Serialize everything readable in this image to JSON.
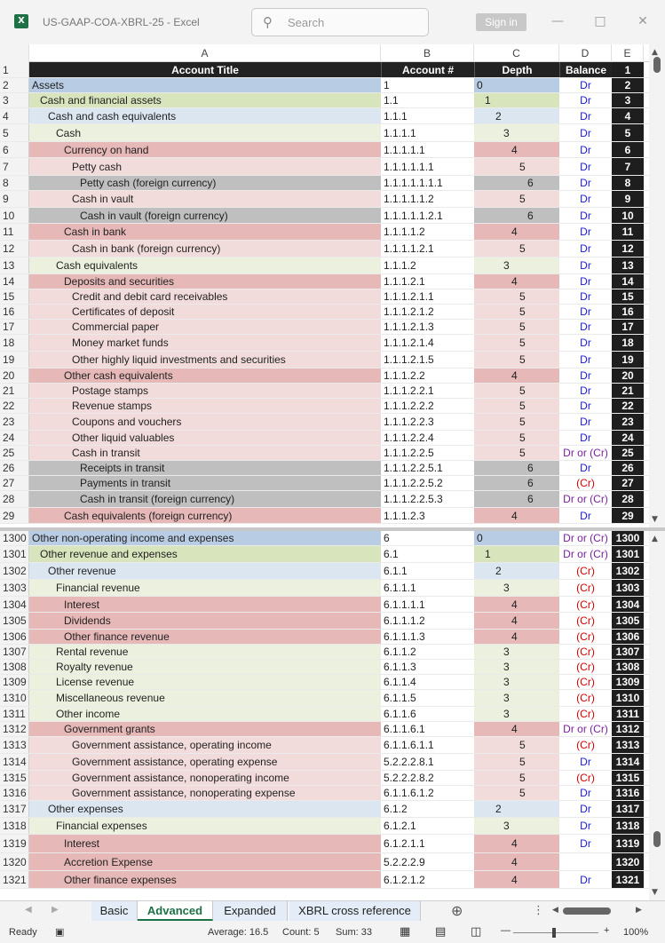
{
  "window": {
    "title": "US-GAAP-COA-XBRL-25 - Excel",
    "search_placeholder": "Search",
    "signin": "Sign in"
  },
  "colors": {
    "assets": "#b8cce4",
    "l1": "#d8e4bc",
    "l2": "#dce6f1",
    "l3": "#ebf1de",
    "l4": "#e6b8b7",
    "l5": "#f2dcdb",
    "l6": "#bfbfbf",
    "dr": "#1a1ad6",
    "cr": "#d40000",
    "mixed": "#7a1fa0"
  },
  "columns": [
    "A",
    "B",
    "C",
    "D",
    "E"
  ],
  "header": {
    "row": "1",
    "title": "Account Title",
    "account": "Account #",
    "depth": "Depth",
    "balance": "Balance",
    "e": "1"
  },
  "rows_top": [
    {
      "n": "2",
      "title": "Assets",
      "acct": "1",
      "depth": "0",
      "bal": "Dr"
    },
    {
      "n": "3",
      "title": "Cash and financial assets",
      "acct": "1.1",
      "depth": "1",
      "bal": "Dr"
    },
    {
      "n": "4",
      "title": "Cash and cash equivalents",
      "acct": "1.1.1",
      "depth": "2",
      "bal": "Dr"
    },
    {
      "n": "5",
      "title": "Cash",
      "acct": "1.1.1.1",
      "depth": "3",
      "bal": "Dr"
    },
    {
      "n": "6",
      "title": "Currency on hand",
      "acct": "1.1.1.1.1",
      "depth": "4",
      "bal": "Dr"
    },
    {
      "n": "7",
      "title": "Petty cash",
      "acct": "1.1.1.1.1.1",
      "depth": "5",
      "bal": "Dr"
    },
    {
      "n": "8",
      "title": "Petty cash (foreign currency)",
      "acct": "1.1.1.1.1.1.1",
      "depth": "6",
      "bal": "Dr"
    },
    {
      "n": "9",
      "title": "Cash in vault",
      "acct": "1.1.1.1.1.2",
      "depth": "5",
      "bal": "Dr"
    },
    {
      "n": "10",
      "title": "Cash in vault (foreign currency)",
      "acct": "1.1.1.1.1.2.1",
      "depth": "6",
      "bal": "Dr"
    },
    {
      "n": "11",
      "title": "Cash in bank",
      "acct": "1.1.1.1.2",
      "depth": "4",
      "bal": "Dr"
    },
    {
      "n": "12",
      "title": "Cash in bank (foreign currency)",
      "acct": "1.1.1.1.2.1",
      "depth": "5",
      "bal": "Dr"
    },
    {
      "n": "13",
      "title": "Cash equivalents",
      "acct": "1.1.1.2",
      "depth": "3",
      "bal": "Dr"
    },
    {
      "n": "14",
      "title": "Deposits and securities",
      "acct": "1.1.1.2.1",
      "depth": "4",
      "bal": "Dr"
    },
    {
      "n": "15",
      "title": "Credit and debit card receivables",
      "acct": "1.1.1.2.1.1",
      "depth": "5",
      "bal": "Dr"
    },
    {
      "n": "16",
      "title": "Certificates of deposit",
      "acct": "1.1.1.2.1.2",
      "depth": "5",
      "bal": "Dr"
    },
    {
      "n": "17",
      "title": "Commercial paper",
      "acct": "1.1.1.2.1.3",
      "depth": "5",
      "bal": "Dr"
    },
    {
      "n": "18",
      "title": "Money market funds",
      "acct": "1.1.1.2.1.4",
      "depth": "5",
      "bal": "Dr"
    },
    {
      "n": "19",
      "title": "Other highly liquid investments and securities",
      "acct": "1.1.1.2.1.5",
      "depth": "5",
      "bal": "Dr"
    },
    {
      "n": "20",
      "title": "Other cash equivalents",
      "acct": "1.1.1.2.2",
      "depth": "4",
      "bal": "Dr"
    },
    {
      "n": "21",
      "title": "Postage stamps",
      "acct": "1.1.1.2.2.1",
      "depth": "5",
      "bal": "Dr"
    },
    {
      "n": "22",
      "title": "Revenue stamps",
      "acct": "1.1.1.2.2.2",
      "depth": "5",
      "bal": "Dr"
    },
    {
      "n": "23",
      "title": "Coupons and vouchers",
      "acct": "1.1.1.2.2.3",
      "depth": "5",
      "bal": "Dr"
    },
    {
      "n": "24",
      "title": "Other liquid valuables",
      "acct": "1.1.1.2.2.4",
      "depth": "5",
      "bal": "Dr"
    },
    {
      "n": "25",
      "title": "Cash in transit",
      "acct": "1.1.1.2.2.5",
      "depth": "5",
      "bal": "Dr or (Cr)"
    },
    {
      "n": "26",
      "title": "Receipts in transit",
      "acct": "1.1.1.2.2.5.1",
      "depth": "6",
      "bal": "Dr"
    },
    {
      "n": "27",
      "title": "Payments in transit",
      "acct": "1.1.1.2.2.5.2",
      "depth": "6",
      "bal": "(Cr)"
    },
    {
      "n": "28",
      "title": "Cash in transit (foreign currency)",
      "acct": "1.1.1.2.2.5.3",
      "depth": "6",
      "bal": "Dr or (Cr)"
    },
    {
      "n": "29",
      "title": "Cash equivalents (foreign currency)",
      "acct": "1.1.1.2.3",
      "depth": "4",
      "bal": "Dr"
    }
  ],
  "rows_bottom": [
    {
      "n": "1300",
      "title": "Other non-operating income and expenses",
      "acct": "6",
      "depth": "0",
      "bal": "Dr or (Cr)"
    },
    {
      "n": "1301",
      "title": "Other revenue and expenses",
      "acct": "6.1",
      "depth": "1",
      "bal": "Dr or (Cr)"
    },
    {
      "n": "1302",
      "title": "Other revenue",
      "acct": "6.1.1",
      "depth": "2",
      "bal": "(Cr)"
    },
    {
      "n": "1303",
      "title": "Financial revenue",
      "acct": "6.1.1.1",
      "depth": "3",
      "bal": "(Cr)"
    },
    {
      "n": "1304",
      "title": "Interest",
      "acct": "6.1.1.1.1",
      "depth": "4",
      "bal": "(Cr)"
    },
    {
      "n": "1305",
      "title": "Dividends",
      "acct": "6.1.1.1.2",
      "depth": "4",
      "bal": "(Cr)"
    },
    {
      "n": "1306",
      "title": "Other finance revenue",
      "acct": "6.1.1.1.3",
      "depth": "4",
      "bal": "(Cr)"
    },
    {
      "n": "1307",
      "title": "Rental revenue",
      "acct": "6.1.1.2",
      "depth": "3",
      "bal": "(Cr)"
    },
    {
      "n": "1308",
      "title": "Royalty revenue",
      "acct": "6.1.1.3",
      "depth": "3",
      "bal": "(Cr)"
    },
    {
      "n": "1309",
      "title": "License revenue",
      "acct": "6.1.1.4",
      "depth": "3",
      "bal": "(Cr)"
    },
    {
      "n": "1310",
      "title": "Miscellaneous revenue",
      "acct": "6.1.1.5",
      "depth": "3",
      "bal": "(Cr)"
    },
    {
      "n": "1311",
      "title": "Other income",
      "acct": "6.1.1.6",
      "depth": "3",
      "bal": "(Cr)"
    },
    {
      "n": "1312",
      "title": "Government grants",
      "acct": "6.1.1.6.1",
      "depth": "4",
      "bal": "Dr or (Cr)"
    },
    {
      "n": "1313",
      "title": "Government assistance, operating income",
      "acct": "6.1.1.6.1.1",
      "depth": "5",
      "bal": "(Cr)"
    },
    {
      "n": "1314",
      "title": "Government assistance, operating expense",
      "acct": "5.2.2.2.8.1",
      "depth": "5",
      "bal": "Dr"
    },
    {
      "n": "1315",
      "title": "Government assistance, nonoperating income",
      "acct": "5.2.2.2.8.2",
      "depth": "5",
      "bal": "(Cr)"
    },
    {
      "n": "1316",
      "title": "Government assistance, nonoperating expense",
      "acct": "6.1.1.6.1.2",
      "depth": "5",
      "bal": "Dr"
    },
    {
      "n": "1317",
      "title": "Other expenses",
      "acct": "6.1.2",
      "depth": "2",
      "bal": "Dr"
    },
    {
      "n": "1318",
      "title": "Financial expenses",
      "acct": "6.1.2.1",
      "depth": "3",
      "bal": "Dr"
    },
    {
      "n": "1319",
      "title": "Interest",
      "acct": "6.1.2.1.1",
      "depth": "4",
      "bal": "Dr"
    },
    {
      "n": "1320",
      "title": "Accretion Expense",
      "acct": "5.2.2.2.9",
      "depth": "4",
      "bal": ""
    },
    {
      "n": "1321",
      "title": "Other finance expenses",
      "acct": "6.1.2.1.2",
      "depth": "4",
      "bal": "Dr"
    }
  ],
  "tabs": [
    "Basic",
    "Advanced",
    "Expanded",
    "XBRL cross reference"
  ],
  "active_tab": 1,
  "status": {
    "ready": "Ready",
    "average": "Average: 16.5",
    "count": "Count: 5",
    "sum": "Sum: 33",
    "zoom": "100%"
  }
}
